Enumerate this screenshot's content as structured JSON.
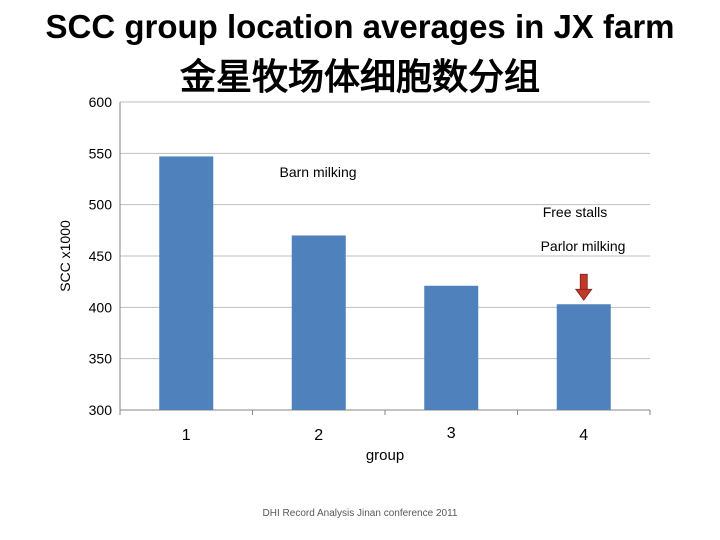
{
  "slide": {
    "title": "SCC group location averages in JX farm",
    "subtitle": "金星牧场体细胞数分组",
    "footer": "DHI Record Analysis Jinan conference 2011"
  },
  "chart_data": {
    "type": "bar",
    "categories": [
      "1",
      "2",
      "3",
      "4"
    ],
    "values": [
      547,
      470,
      421,
      403
    ],
    "xlabel": "group",
    "ylabel": "SCC x1000",
    "ylim": [
      300,
      600
    ],
    "yticks": [
      300,
      350,
      400,
      450,
      500,
      550,
      600
    ],
    "grid": true,
    "bar_color": "#4F81BD",
    "grid_color": "#BFBFBF",
    "annotations": [
      {
        "text": "Barn milking"
      },
      {
        "text": "Free stalls"
      },
      {
        "text": "Parlor milking"
      }
    ],
    "arrow": {
      "target_category": "4",
      "color": "#C0392B"
    }
  }
}
